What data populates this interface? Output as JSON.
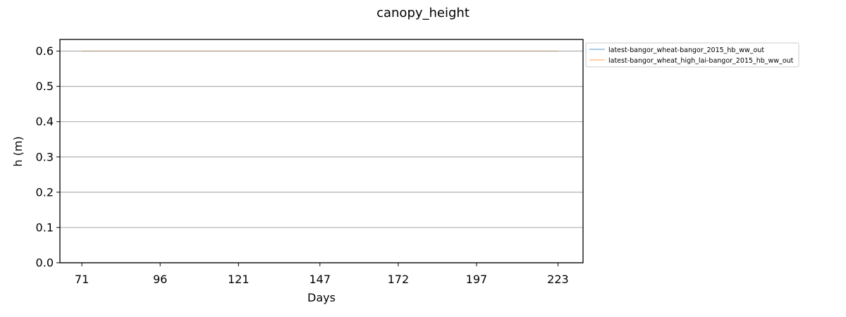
{
  "chart_data": {
    "type": "line",
    "title": "canopy_height",
    "xlabel": "Days",
    "ylabel": "h (m)",
    "x_ticks": [
      "71",
      "96",
      "121",
      "147",
      "172",
      "197",
      "223"
    ],
    "y_ticks": [
      "0.0",
      "0.1",
      "0.2",
      "0.3",
      "0.4",
      "0.5",
      "0.6"
    ],
    "xlim": [
      64,
      231
    ],
    "ylim": [
      0,
      0.633
    ],
    "grid": "horizontal",
    "legend_position": "outside-top-right",
    "series": [
      {
        "name": "latest-bangor_wheat-bangor_2015_hb_ww_out",
        "color": "#1f77b4",
        "x": [
          71,
          223
        ],
        "y": [
          0.6,
          0.6
        ]
      },
      {
        "name": "latest-bangor_wheat_high_lai-bangor_2015_hb_ww_out",
        "color": "#ff7f0e",
        "x": [
          71,
          223
        ],
        "y": [
          0.6,
          0.6
        ]
      }
    ]
  }
}
